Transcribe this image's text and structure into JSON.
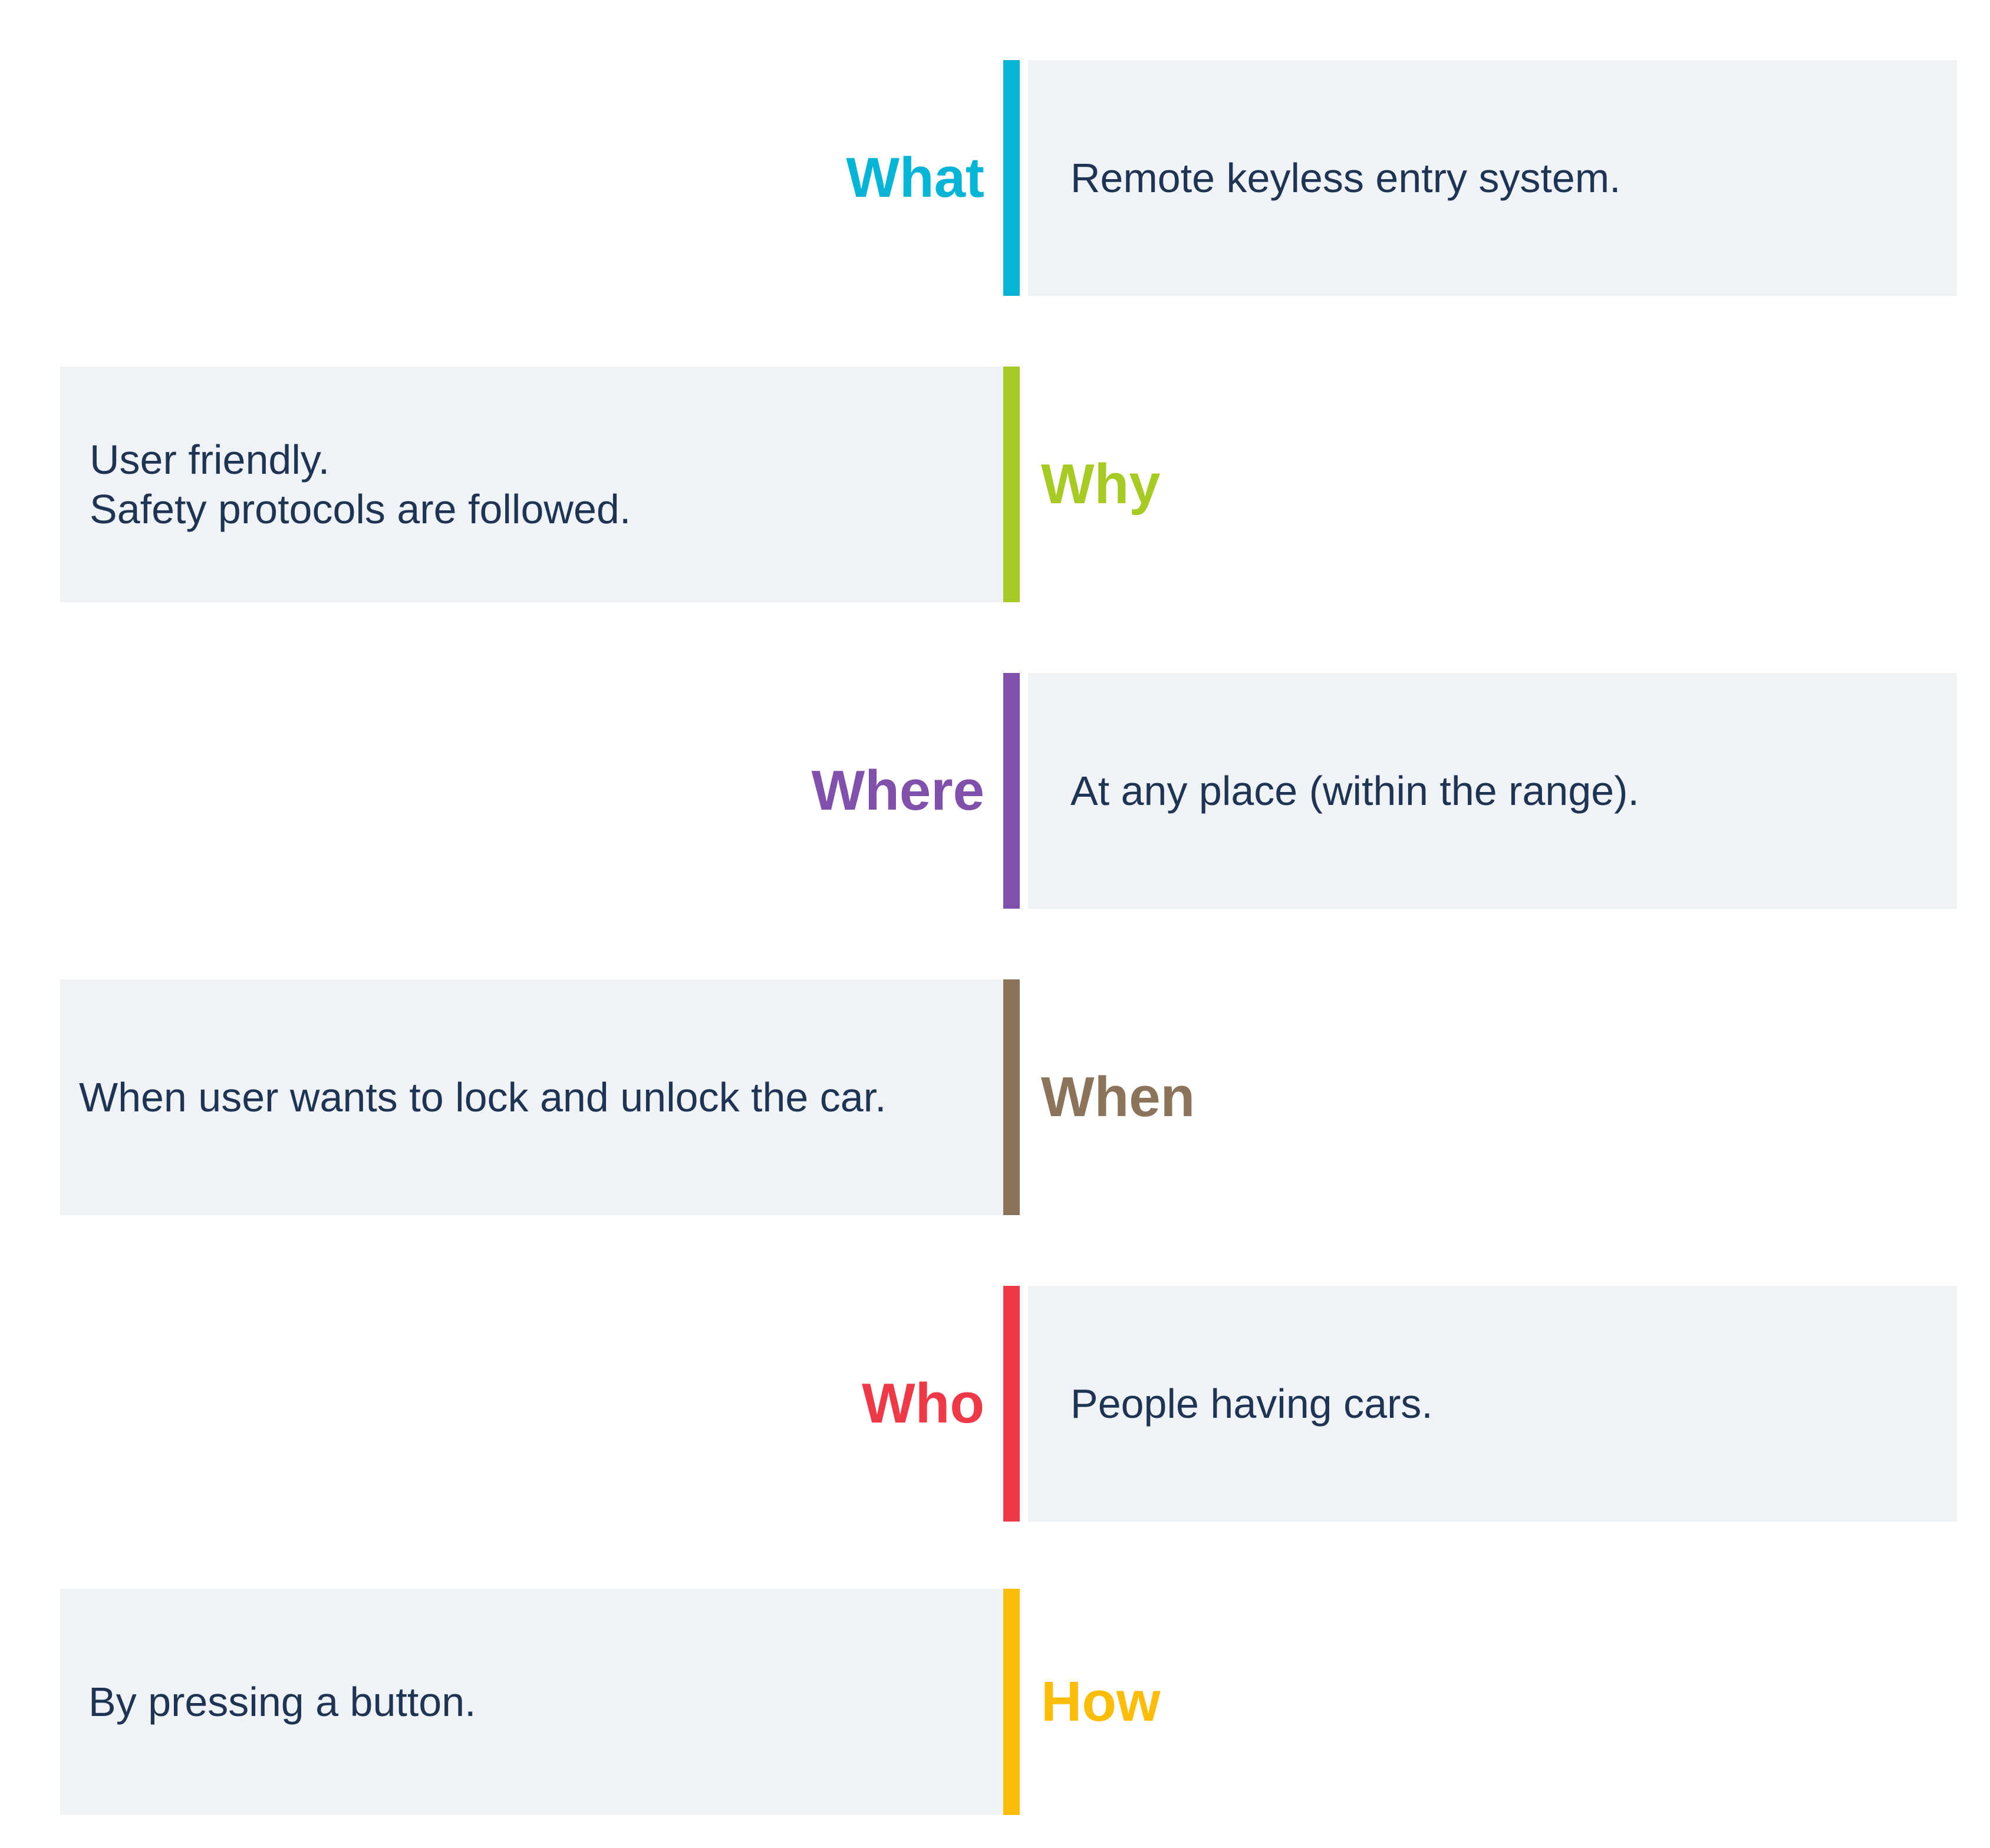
{
  "items": [
    {
      "label": "What",
      "color": "#08b4d6",
      "side": "right",
      "lines": [
        "Remote keyless entry system."
      ]
    },
    {
      "label": "Why",
      "color": "#a8ca25",
      "side": "left",
      "lines": [
        "User friendly.",
        "Safety protocols are followed."
      ]
    },
    {
      "label": "Where",
      "color": "#8150aa",
      "side": "right",
      "lines": [
        "At any place (within the range)."
      ]
    },
    {
      "label": "When",
      "color": "#8c735b",
      "side": "left",
      "lines": [
        "When user wants to lock and unlock the car."
      ]
    },
    {
      "label": "Who",
      "color": "#ee3a48",
      "side": "right",
      "lines": [
        "People having cars."
      ]
    },
    {
      "label": "How",
      "color": "#fbbd0c",
      "side": "left",
      "lines": [
        "By pressing a button."
      ]
    }
  ]
}
